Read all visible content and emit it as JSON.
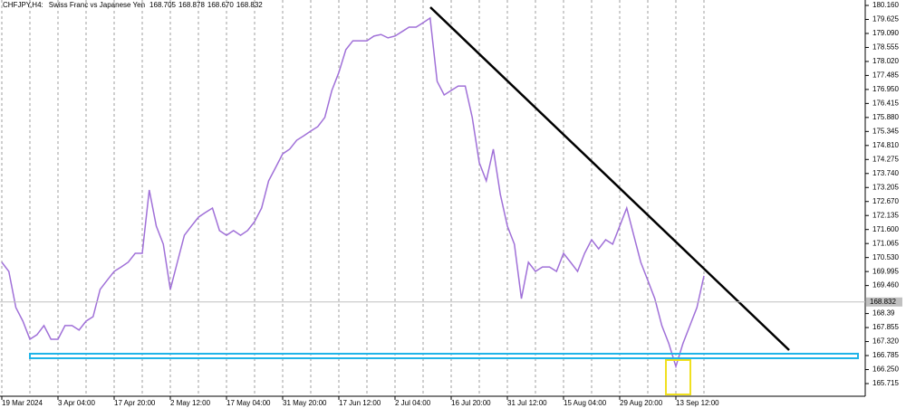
{
  "chart_data": {
    "type": "line",
    "title": "CHFJPY,H4:",
    "subtitle": "Swiss Franc vs Japanese Yen",
    "ohlc": [
      168.705,
      168.878,
      {
        "value": 168.67,
        "label": "168.670"
      },
      168.832
    ],
    "categories": [
      "19 Mar 2024",
      null,
      null,
      null,
      null,
      null,
      null,
      null,
      "3 Apr 04:00",
      null,
      null,
      null,
      null,
      null,
      null,
      null,
      "17 Apr 20:00",
      null,
      null,
      null,
      null,
      null,
      null,
      null,
      "2 May 12:00",
      null,
      null,
      null,
      null,
      null,
      null,
      null,
      "17 May 04:00",
      null,
      null,
      null,
      null,
      null,
      null,
      null,
      "31 May 20:00",
      null,
      null,
      null,
      null,
      null,
      null,
      null,
      "17 Jun 12:00",
      null,
      null,
      null,
      null,
      null,
      null,
      null,
      "2 Jul 04:00",
      null,
      null,
      null,
      null,
      null,
      null,
      null,
      "16 Jul 20:00",
      null,
      null,
      null,
      null,
      null,
      null,
      null,
      "31 Jul 12:00",
      null,
      null,
      null,
      null,
      null,
      null,
      null,
      "15 Aug 04:00",
      null,
      null,
      null,
      null,
      null,
      null,
      null,
      "29 Aug 20:00",
      null,
      null,
      null,
      null,
      null,
      null,
      null,
      "13 Sep 12:00",
      null,
      null,
      null,
      null
    ],
    "series": [
      {
        "name": "CHFJPY",
        "color": "#a070d8",
        "values": [
          170.35,
          170.0,
          168.62,
          168.1,
          167.41,
          167.58,
          167.93,
          167.41,
          167.41,
          167.93,
          167.93,
          167.76,
          168.1,
          168.27,
          169.31,
          169.66,
          170.0,
          170.17,
          170.35,
          170.69,
          170.69,
          173.11,
          171.73,
          171.04,
          169.31,
          170.35,
          171.38,
          171.73,
          172.07,
          172.25,
          172.42,
          171.56,
          171.38,
          171.56,
          171.38,
          171.56,
          171.9,
          172.42,
          173.46,
          173.97,
          174.49,
          174.67,
          175.01,
          175.18,
          175.36,
          175.53,
          175.88,
          176.91,
          177.6,
          178.47,
          178.81,
          178.81,
          178.81,
          178.99,
          179.05,
          178.92,
          178.99,
          179.16,
          179.33,
          179.33,
          179.5,
          179.68,
          177.26,
          176.74,
          176.91,
          177.08,
          177.08,
          175.88,
          174.15,
          173.46,
          174.67,
          172.94,
          171.73,
          171.04,
          168.96,
          170.35,
          170.0,
          170.17,
          170.17,
          170.0,
          170.69,
          170.35,
          170.0,
          170.69,
          171.21,
          170.86,
          171.21,
          171.04,
          171.73,
          172.42,
          171.38,
          170.35,
          169.66,
          168.96,
          167.93,
          167.24,
          166.37,
          167.24,
          167.93,
          168.62,
          169.83
        ]
      }
    ],
    "ylim": [
      165.5,
      180.36
    ],
    "yticks": [
      {
        "value": 180.16,
        "label": "180.160"
      },
      179.625,
      {
        "value": 179.09,
        "label": "179.090"
      },
      178.555,
      {
        "value": 178.02,
        "label": "178.020"
      },
      177.485,
      {
        "value": 176.95,
        "label": "176.950"
      },
      176.415,
      {
        "value": 175.88,
        "label": "175.880"
      },
      175.345,
      {
        "value": 174.81,
        "label": "174.810"
      },
      174.275,
      {
        "value": 173.74,
        "label": "173.740"
      },
      173.205,
      {
        "value": 172.67,
        "label": "172.670"
      },
      172.135,
      {
        "value": 171.6,
        "label": "171.600"
      },
      171.065,
      {
        "value": 170.53,
        "label": "170.530"
      },
      169.995,
      {
        "value": 169.46,
        "label": "169.460"
      },
      168.39,
      167.855,
      {
        "value": 167.32,
        "label": "167.320"
      },
      166.785,
      {
        "value": 166.25,
        "label": "166.250"
      },
      165.715
    ],
    "grid": true
  }
}
